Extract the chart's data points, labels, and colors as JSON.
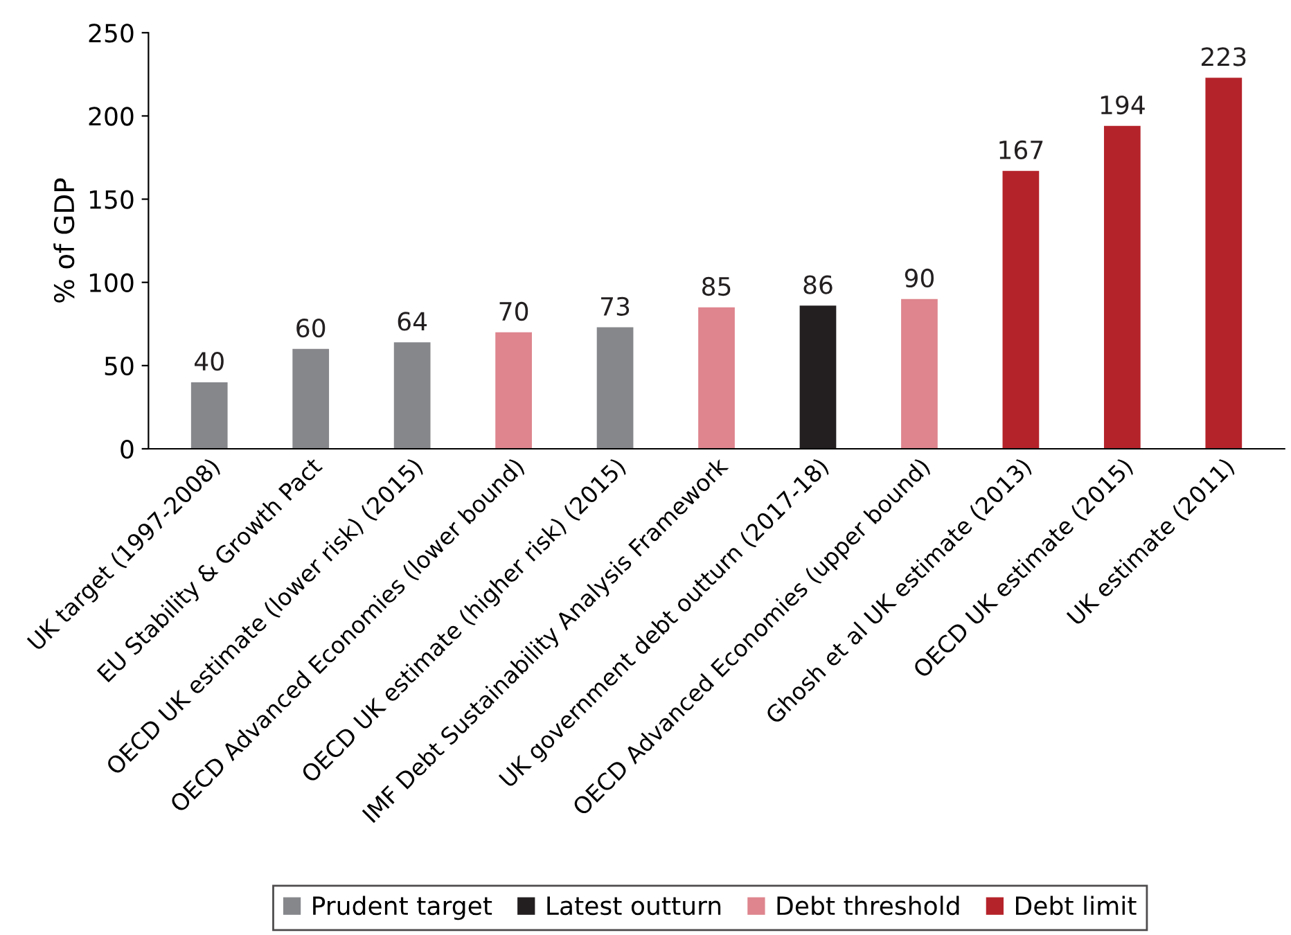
{
  "chart_data": {
    "type": "bar",
    "ylabel": "% of GDP",
    "categories": [
      "UK target (1997-2008)",
      "EU Stability & Growth Pact",
      "OECD UK estimate (lower risk) (2015)",
      "OECD Advanced Economies (lower bound)",
      "OECD UK estimate (higher risk) (2015)",
      "IMF Debt Sustainability Analysis Framework",
      "UK government debt outturn (2017-18)",
      "OECD Advanced Economies (upper bound)",
      "Ghosh et al UK estimate (2013)",
      "OECD UK estimate (2015)",
      "UK estimate (2011)"
    ],
    "series": [
      {
        "name": "Prudent target",
        "color": "#86878b",
        "values": [
          40,
          60,
          64,
          null,
          73,
          null,
          null,
          null,
          null,
          null,
          null
        ]
      },
      {
        "name": "Latest outturn",
        "color": "#231f20",
        "values": [
          null,
          null,
          null,
          null,
          null,
          null,
          86,
          null,
          null,
          null,
          null
        ]
      },
      {
        "name": "Debt threshold",
        "color": "#de858d",
        "values": [
          null,
          null,
          null,
          70,
          null,
          85,
          null,
          90,
          null,
          null,
          null
        ]
      },
      {
        "name": "Debt limit",
        "color": "#b5232a",
        "values": [
          null,
          null,
          null,
          null,
          null,
          null,
          null,
          null,
          167,
          194,
          223
        ]
      }
    ],
    "ylim": [
      0,
      250
    ],
    "yticks": [
      0,
      50,
      100,
      150,
      200,
      250
    ],
    "grid": false,
    "legend": "bottom",
    "data_labels": true
  }
}
